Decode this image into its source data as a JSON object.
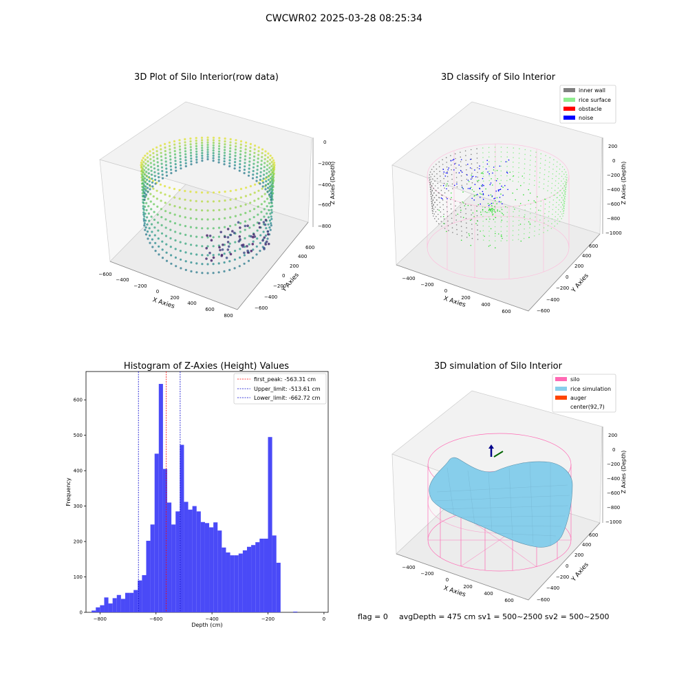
{
  "figure_title": "CWCWR02 2025-03-28 08:25:34",
  "footer": {
    "flag": "flag = 0",
    "metrics": "avgDepth = 475 cm  sv1 = 500~2500  sv2 = 500~2500"
  },
  "colors": {
    "histogram_bar": "#4a4af7",
    "first_peak_line": "#ff0000",
    "limit_lines": "#0000cc",
    "inner_wall": "#808080",
    "rice_surface": "#90ee90",
    "obstacle": "#ff0000",
    "noise": "#0000ff",
    "silo": "#ff69b4",
    "rice_simulation": "#87ceeb",
    "auger": "#ff4500"
  },
  "chart_data": [
    {
      "type": "scatter",
      "title": "3D Plot of Silo Interior(row data)",
      "xlabel": "X Axies",
      "ylabel": "Y Axies",
      "zlabel": "Z Axies (Depth)",
      "x_ticks": [
        "−600",
        "−400",
        "−200",
        "0",
        "200",
        "400",
        "600",
        "800"
      ],
      "y_ticks": [
        "−600",
        "−400",
        "−200",
        "0",
        "200",
        "400",
        "600"
      ],
      "z_ticks": [
        "0",
        "−200",
        "−400",
        "−600",
        "−800"
      ],
      "colormap": "viridis"
    },
    {
      "type": "scatter",
      "title": "3D classify of Silo Interior",
      "xlabel": "X Axies",
      "ylabel": "Y Axies",
      "zlabel": "Z Axies (Depth)",
      "x_ticks": [
        "−400",
        "−200",
        "0",
        "200",
        "400",
        "600"
      ],
      "y_ticks": [
        "−600",
        "−400",
        "−200",
        "0",
        "200",
        "400",
        "600"
      ],
      "z_ticks": [
        "200",
        "0",
        "−200",
        "−400",
        "−600",
        "−800",
        "−1000"
      ],
      "legend": [
        "inner wall",
        "rice surface",
        "obstacle",
        "noise"
      ],
      "legend_position": "top-right"
    },
    {
      "type": "bar",
      "title": "Histogram of Z-Axies (Height) Values",
      "xlabel": "Depth (cm)",
      "ylabel": "Frequency",
      "xlim": [
        -850,
        15
      ],
      "ylim": [
        0,
        680
      ],
      "x_ticks": [
        -800,
        -600,
        -400,
        -200,
        0
      ],
      "x_tick_labels": [
        "−800",
        "−600",
        "−400",
        "−200",
        "0"
      ],
      "y_ticks": [
        0,
        100,
        200,
        300,
        400,
        500,
        600
      ],
      "bin_start": -830,
      "bin_width": 15,
      "values": [
        5,
        14,
        20,
        42,
        25,
        40,
        49,
        38,
        55,
        55,
        63,
        90,
        105,
        202,
        248,
        448,
        645,
        405,
        310,
        248,
        285,
        473,
        312,
        290,
        300,
        285,
        255,
        252,
        240,
        254,
        231,
        183,
        169,
        161,
        161,
        166,
        175,
        185,
        190,
        198,
        208,
        208,
        495,
        217,
        140,
        0,
        0,
        0,
        2
      ],
      "reference_lines": [
        {
          "name": "first_peak: -563.31 cm",
          "x": -563.31,
          "color": "#ff0000"
        },
        {
          "name": "Upper_limit: -513.61 cm",
          "x": -513.61,
          "color": "#0000cc"
        },
        {
          "name": "Lower_limit: -662.72 cm",
          "x": -662.72,
          "color": "#0000cc"
        }
      ],
      "legend_position": "top-right"
    },
    {
      "type": "surface",
      "title": "3D simulation of Silo Interior",
      "xlabel": "X Axies",
      "ylabel": "Y Axies",
      "zlabel": "Z Axies (Depth)",
      "x_ticks": [
        "−400",
        "−200",
        "0",
        "200",
        "400",
        "600"
      ],
      "y_ticks": [
        "−600",
        "−400",
        "−200",
        "0",
        "200",
        "400",
        "600"
      ],
      "z_ticks": [
        "200",
        "0",
        "−200",
        "−400",
        "−600",
        "−800",
        "−1000"
      ],
      "legend": [
        "silo",
        "rice simulation",
        "auger",
        "center(92,7)"
      ],
      "legend_position": "top-right"
    }
  ]
}
